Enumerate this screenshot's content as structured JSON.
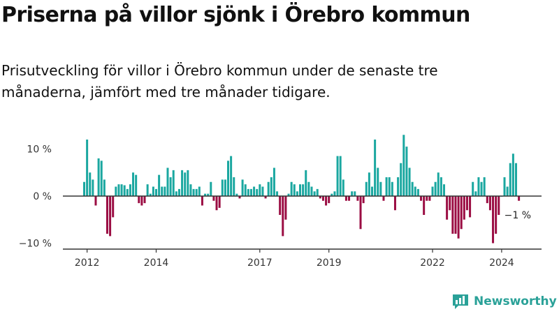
{
  "title": "Priserna på villor sjönk i Örebro kommun",
  "subtitle": "Prisutveckling för villor i Örebro kommun under de senaste tre månaderna, jämfört med tre månader tidigare.",
  "brand": {
    "name": "Newsworthy",
    "icon": "bar-chart-logo-icon"
  },
  "colors": {
    "positive": "#1aa7a0",
    "negative": "#9b0d43",
    "axis": "#333333",
    "zero_line": "#333333"
  },
  "chart_data": {
    "type": "bar",
    "title": "Priserna på villor sjönk i Örebro kommun",
    "ylabel": "",
    "xlabel": "",
    "ylim": [
      -11.5,
      14
    ],
    "y_ticks": [
      10,
      0,
      -10
    ],
    "y_tick_labels": [
      "10 %",
      "0 %",
      "−10 %"
    ],
    "x_ticks": [
      {
        "label": "2012",
        "at": "2012-01"
      },
      {
        "label": "2014",
        "at": "2014-01"
      },
      {
        "label": "2017",
        "at": "2017-01"
      },
      {
        "label": "2019",
        "at": "2019-01"
      },
      {
        "label": "2022",
        "at": "2022-01"
      },
      {
        "label": "2024",
        "at": "2024-01"
      }
    ],
    "start_month": "2011-12",
    "values": [
      3,
      12,
      5,
      3.5,
      -2,
      8,
      7.5,
      3.5,
      -8,
      -8.5,
      -4.5,
      2,
      2.5,
      2.5,
      2.3,
      1.5,
      2.5,
      5,
      4.5,
      -1.5,
      -2,
      -1.5,
      2.5,
      0.5,
      2,
      1.5,
      4.5,
      2,
      2,
      6,
      4,
      5.5,
      1,
      1.5,
      5.5,
      5,
      5.5,
      2.5,
      1.5,
      1.5,
      2,
      -2,
      0.5,
      0.5,
      3,
      -1,
      -3,
      -2.5,
      3.5,
      3.5,
      7.5,
      8.5,
      4,
      0.5,
      -0.5,
      3.5,
      2.5,
      1.5,
      1.5,
      2,
      1.5,
      2.5,
      2,
      -0.5,
      3,
      4,
      6,
      1,
      -4,
      -8.5,
      -5,
      0.5,
      3,
      2.5,
      1,
      2.5,
      2.5,
      5.5,
      3,
      2,
      1,
      1.5,
      -0.5,
      -1,
      -2,
      -1.5,
      0.5,
      1,
      8.5,
      8.5,
      3.5,
      -1,
      -1,
      1,
      1,
      -1,
      -7,
      -1.5,
      3,
      5,
      2,
      12,
      6,
      3,
      -1,
      4,
      4,
      3,
      -3,
      4,
      7,
      13,
      10.5,
      6,
      3,
      2,
      1.5,
      -1,
      -4,
      -1,
      -1,
      2,
      3,
      5,
      4,
      2.5,
      -5,
      -3,
      -8,
      -8,
      -9,
      -7,
      -5,
      -3,
      -4.5,
      3,
      1,
      4,
      3,
      4,
      -1.5,
      -3,
      -10,
      -8,
      -4,
      0,
      4,
      2,
      7,
      9,
      7,
      -1
    ],
    "last_value_label": "−1 %"
  }
}
